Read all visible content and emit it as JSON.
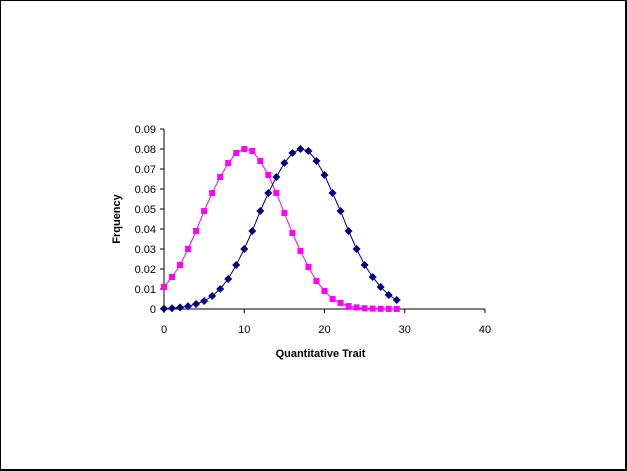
{
  "chart_data": {
    "type": "line",
    "title": "",
    "xlabel": "Quantitative Trait",
    "ylabel": "Frquency",
    "xlim": [
      0,
      40
    ],
    "ylim": [
      0,
      0.09
    ],
    "x_ticks": [
      0,
      10,
      20,
      30,
      40
    ],
    "y_ticks": [
      0,
      0.01,
      0.02,
      0.03,
      0.04,
      0.05,
      0.06,
      0.07,
      0.08,
      0.09
    ],
    "grid": false,
    "legend": "none",
    "series": [
      {
        "color": "#ff00ff",
        "marker": "square",
        "x": [
          0,
          1,
          2,
          3,
          4,
          5,
          6,
          7,
          8,
          9,
          10,
          11,
          12,
          13,
          14,
          15,
          16,
          17,
          18,
          19,
          20,
          21,
          22,
          23,
          24,
          25,
          26,
          27,
          28,
          29
        ],
        "values": [
          0.011,
          0.016,
          0.022,
          0.03,
          0.039,
          0.049,
          0.058,
          0.066,
          0.073,
          0.078,
          0.08,
          0.079,
          0.074,
          0.067,
          0.058,
          0.048,
          0.038,
          0.029,
          0.021,
          0.014,
          0.009,
          0.005,
          0.003,
          0.0015,
          0.0008,
          0.0004,
          0.0002,
          0.0001,
          5e-05,
          2e-05
        ]
      },
      {
        "color": "#000080",
        "marker": "diamond",
        "x": [
          0,
          1,
          2,
          3,
          4,
          5,
          6,
          7,
          8,
          9,
          10,
          11,
          12,
          13,
          14,
          15,
          16,
          17,
          18,
          19,
          20,
          21,
          22,
          23,
          24,
          25,
          26,
          27,
          28,
          29
        ],
        "values": [
          0.0002,
          0.0004,
          0.0008,
          0.0014,
          0.0025,
          0.004,
          0.0065,
          0.01,
          0.015,
          0.022,
          0.03,
          0.039,
          0.049,
          0.058,
          0.066,
          0.073,
          0.078,
          0.08,
          0.079,
          0.074,
          0.067,
          0.058,
          0.049,
          0.039,
          0.03,
          0.022,
          0.016,
          0.011,
          0.007,
          0.0045
        ]
      }
    ]
  }
}
